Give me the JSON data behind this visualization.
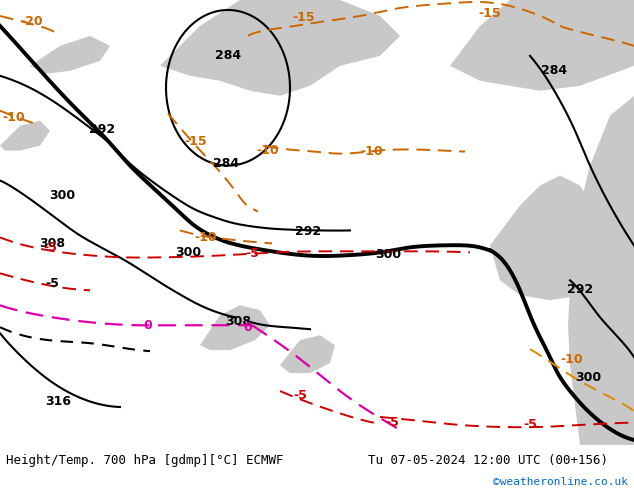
{
  "title_left": "Height/Temp. 700 hPa [gdmp][°C] ECMWF",
  "title_right": "Tu 07-05-2024 12:00 UTC (00+156)",
  "credit": "©weatheronline.co.uk",
  "credit_color": "#0066cc",
  "bg_map_color": "#c8e6c8",
  "sea_color": "#c8c8c8",
  "title_bg": "#ffffff",
  "title_fontsize": 9,
  "credit_fontsize": 8,
  "figsize": [
    6.34,
    4.9
  ],
  "dpi": 100
}
